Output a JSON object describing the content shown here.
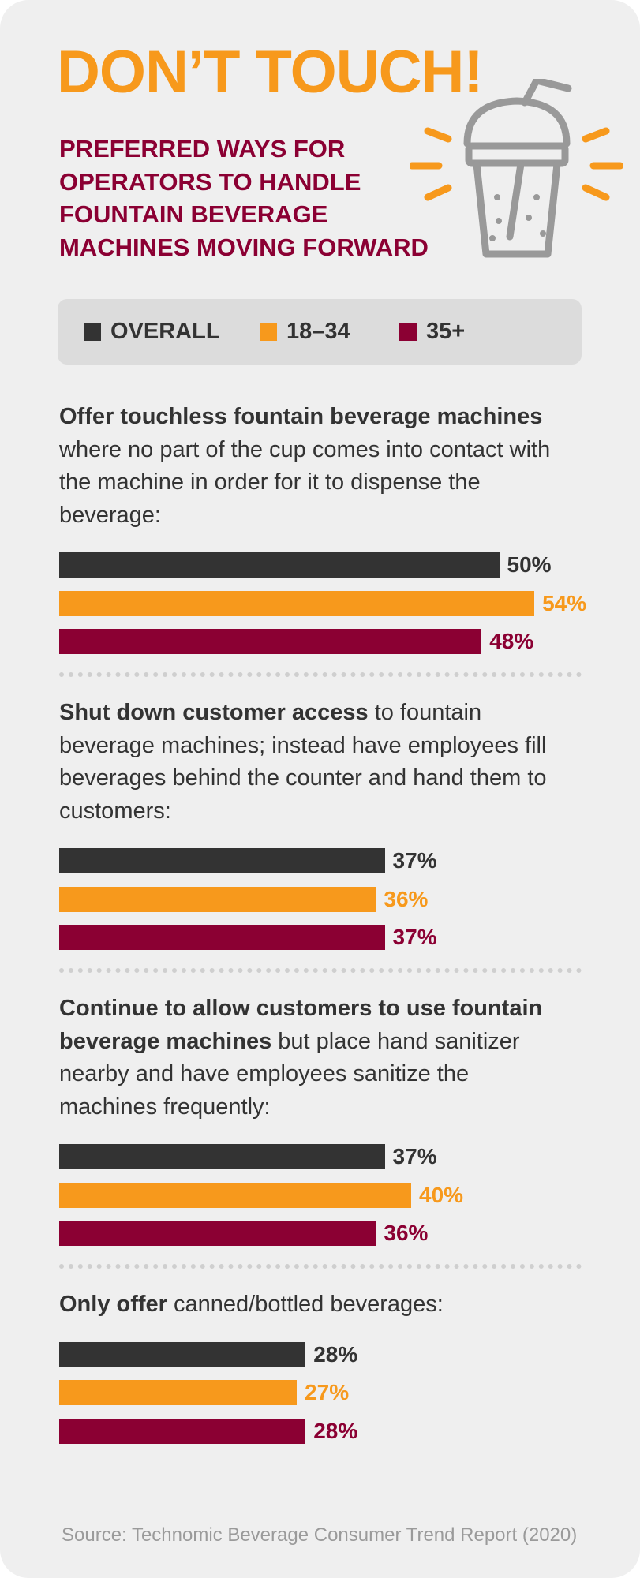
{
  "chart_data": {
    "type": "bar",
    "title": "DON’T TOUCH!",
    "subtitle": [
      "PREFERRED WAYS FOR",
      "OPERATORS TO HANDLE",
      "FOUNTAIN BEVERAGE",
      "MACHINES MOVING FORWARD"
    ],
    "categories": [
      {
        "bold": "Offer touchless fountain beverage machines",
        "text": "where no part of the cup comes into contact with the machine in order for it to dispense the beverage:"
      },
      {
        "bold": "Shut down customer access",
        "text": "to fountain beverage machines; instead have employees fill beverages behind the counter and hand them to customers:"
      },
      {
        "bold": "Continue to allow customers to use fountain beverage machines",
        "text": "but place hand sanitizer nearby and have employees sanitize the machines frequently:"
      },
      {
        "bold": "Only offer",
        "text": "canned/bottled beverages:"
      }
    ],
    "series": [
      {
        "name": "OVERALL",
        "color": "#333333",
        "values": [
          50,
          37,
          37,
          28
        ],
        "value_labels": [
          "50%",
          "37%",
          "37%",
          "28%"
        ]
      },
      {
        "name": "18–34",
        "color": "#f7991c",
        "values": [
          54,
          36,
          40,
          27
        ],
        "value_labels": [
          "54%",
          "36%",
          "40%",
          "27%"
        ]
      },
      {
        "name": "35+",
        "color": "#8b0033",
        "values": [
          48,
          37,
          36,
          28
        ],
        "value_labels": [
          "48%",
          "37%",
          "36%",
          "28%"
        ]
      }
    ],
    "source": "Source: Technomic Beverage Consumer Trend Report (2020)"
  }
}
